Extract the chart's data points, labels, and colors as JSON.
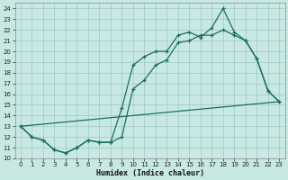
{
  "xlabel": "Humidex (Indice chaleur)",
  "bg_color": "#c8e8e4",
  "grid_color": "#a0c8c4",
  "line_color": "#1a6e60",
  "xlim": [
    -0.5,
    23.5
  ],
  "ylim": [
    10,
    24.5
  ],
  "yticks": [
    10,
    11,
    12,
    13,
    14,
    15,
    16,
    17,
    18,
    19,
    20,
    21,
    22,
    23,
    24
  ],
  "xticks": [
    0,
    1,
    2,
    3,
    4,
    5,
    6,
    7,
    8,
    9,
    10,
    11,
    12,
    13,
    14,
    15,
    16,
    17,
    18,
    19,
    20,
    21,
    22,
    23
  ],
  "line1_x": [
    0,
    1,
    2,
    3,
    4,
    5,
    6,
    7,
    8,
    9,
    10,
    11,
    12,
    13,
    14,
    15,
    16,
    17,
    18,
    19,
    20,
    21,
    22,
    23
  ],
  "line1_y": [
    13.0,
    12.0,
    11.7,
    10.8,
    10.5,
    11.0,
    11.7,
    11.5,
    11.5,
    14.7,
    18.7,
    19.5,
    20.0,
    20.0,
    21.5,
    21.8,
    21.3,
    22.2,
    24.0,
    21.8,
    21.0,
    19.3,
    16.3,
    15.3
  ],
  "line2_x": [
    0,
    1,
    2,
    3,
    4,
    5,
    6,
    7,
    8,
    9,
    10,
    11,
    12,
    13,
    14,
    15,
    16,
    17,
    18,
    19,
    20,
    21,
    22,
    23
  ],
  "line2_y": [
    13.0,
    12.0,
    11.7,
    10.8,
    10.5,
    11.0,
    11.7,
    11.5,
    11.5,
    12.0,
    16.5,
    17.3,
    18.7,
    19.2,
    20.8,
    21.0,
    21.5,
    21.5,
    22.0,
    21.5,
    21.0,
    19.3,
    16.3,
    15.3
  ],
  "line3_x": [
    0,
    23
  ],
  "line3_y": [
    13.0,
    15.3
  ]
}
